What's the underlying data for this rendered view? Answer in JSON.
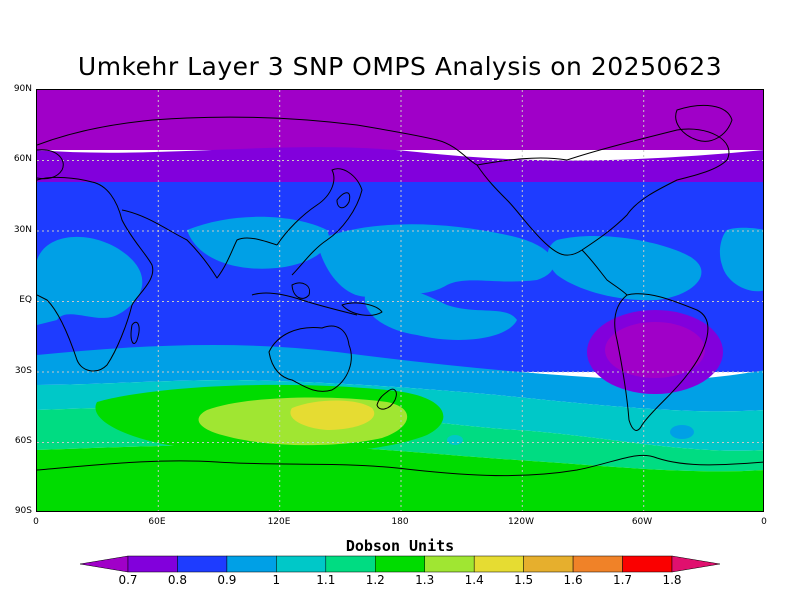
{
  "title": "Umkehr Layer 3 SNP OMPS Analysis on 20250623",
  "lat_labels": [
    "90N",
    "60N",
    "30N",
    "EQ",
    "30S",
    "60S",
    "90S"
  ],
  "lon_labels": [
    "0",
    "60E",
    "120E",
    "180",
    "120W",
    "60W",
    "0"
  ],
  "colorbar": {
    "units_label": "Dobson Units",
    "ticks": [
      "0.7",
      "0.8",
      "0.9",
      "1",
      "1.1",
      "1.2",
      "1.3",
      "1.4",
      "1.5",
      "1.6",
      "1.7",
      "1.8"
    ],
    "colors": [
      "#a000c8",
      "#8200dc",
      "#1e3cff",
      "#00a0e6",
      "#00c8c8",
      "#00dc82",
      "#00dc00",
      "#a0e632",
      "#e6dc32",
      "#e6af2d",
      "#f08228",
      "#fa0000",
      "#e0106e"
    ]
  },
  "colors": {
    "low": "#a000c8",
    "midlow": "#8200dc",
    "blue": "#1e3cff",
    "lightblue": "#00a0e6",
    "cyan": "#00c8c8",
    "teal": "#00dc82",
    "green": "#00dc00",
    "lime": "#a0e632",
    "yellow": "#e6dc32",
    "coast": "#000000",
    "grid": "#c8c8c8"
  }
}
